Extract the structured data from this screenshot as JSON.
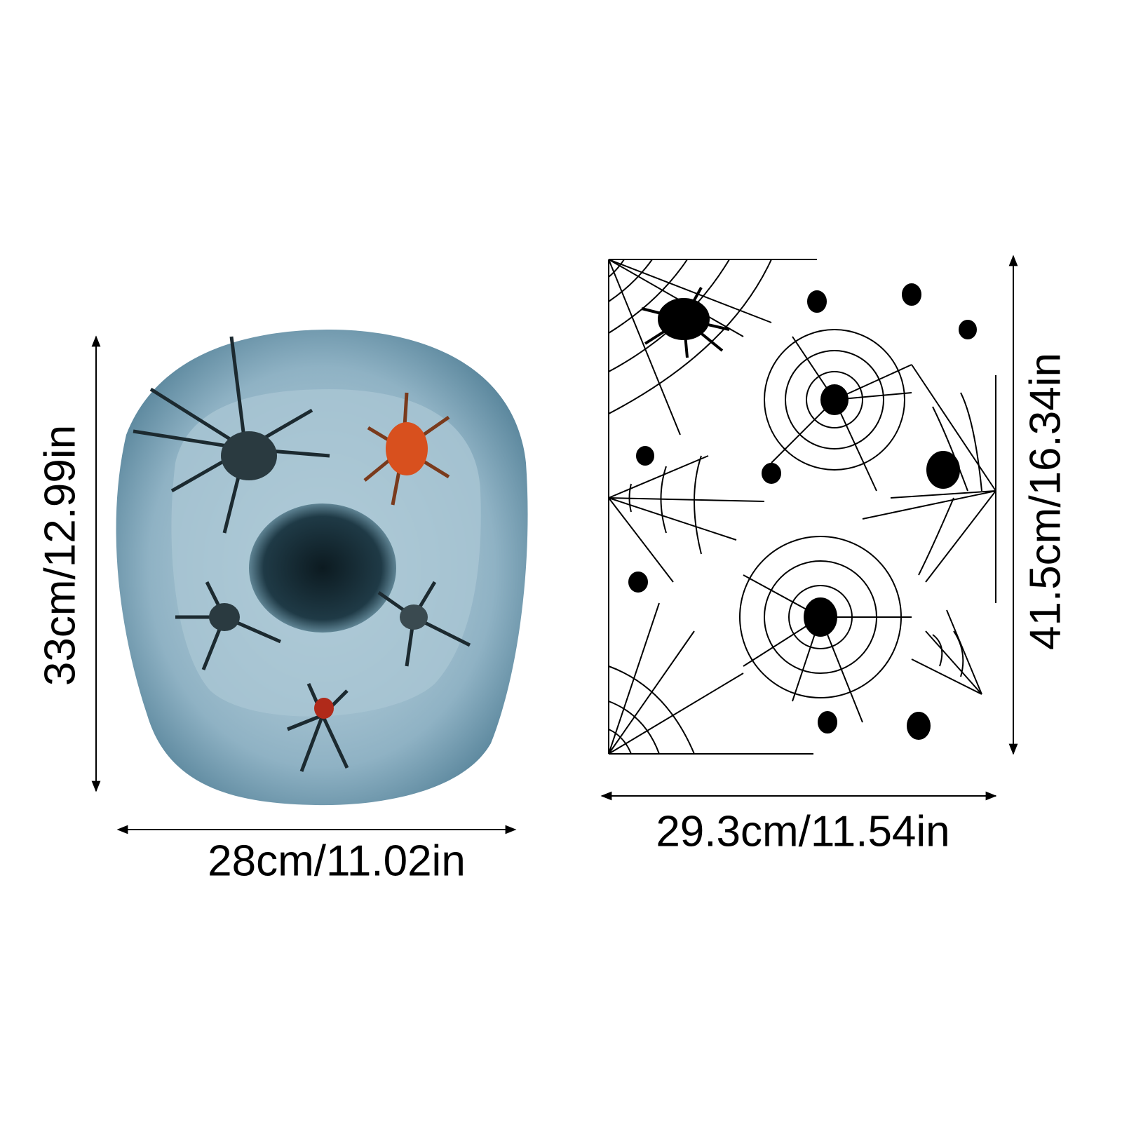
{
  "left_item": {
    "height_label": "33cm/12.99in",
    "width_label": "28cm/11.02in"
  },
  "right_item": {
    "width_label": "29.3cm/11.54in",
    "height_label": "41.5cm/16.34in"
  }
}
